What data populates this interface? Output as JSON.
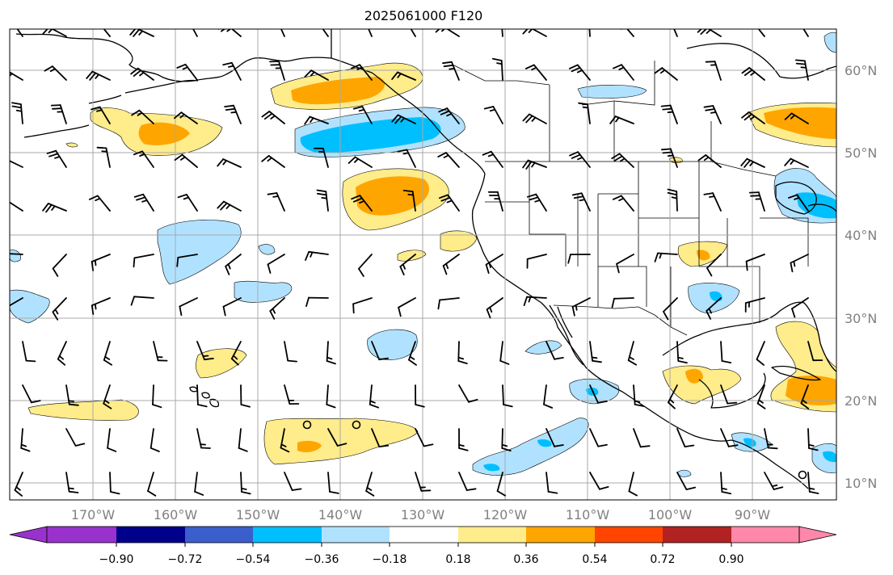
{
  "title": "2025061000 F120",
  "lat_labels": [
    "60°N",
    "50°N",
    "40°N",
    "30°N",
    "20°N",
    "10°N"
  ],
  "lon_labels": [
    "170°W",
    "160°W",
    "150°W",
    "140°W",
    "130°W",
    "120°W",
    "110°W",
    "100°W",
    "90°W"
  ],
  "colorbar": {
    "tick_labels": [
      "−0.90",
      "−0.72",
      "−0.54",
      "−0.36",
      "−0.18",
      "0.18",
      "0.36",
      "0.54",
      "0.72",
      "0.90"
    ],
    "colors": [
      "#9932cc",
      "#00008b",
      "#3a5fcd",
      "#00bfff",
      "#b0e2ff",
      "#ffffff",
      "#ffec8b",
      "#ffa500",
      "#ff4500",
      "#b22222",
      "#ff88aa"
    ]
  },
  "field_colors": {
    "pos_light": "#ffec8b",
    "pos_mid": "#ffa500",
    "neg_light": "#b0e2ff",
    "neg_mid": "#00bfff"
  }
}
